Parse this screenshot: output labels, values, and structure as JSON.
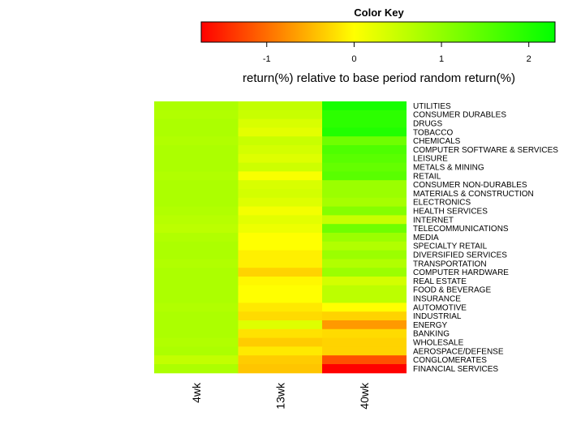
{
  "chart_data": {
    "type": "heatmap",
    "color_key": {
      "title": "Color Key",
      "xlabel": "return(%) relative to base period random return(%)",
      "range": [
        -1.75,
        2.3
      ],
      "ticks": [
        -1,
        0,
        1,
        2
      ],
      "tick_labels": [
        "-1",
        "0",
        "1",
        "2"
      ],
      "colors": [
        "#ff0000",
        "#ffff00",
        "#00ff00"
      ]
    },
    "columns": [
      "4wk",
      "13wk",
      "40wk"
    ],
    "rows": [
      "UTILITIES",
      "CONSUMER DURABLES",
      "DRUGS",
      "TOBACCO",
      "CHEMICALS",
      "COMPUTER SOFTWARE & SERVICES",
      "LEISURE",
      "METALS & MINING",
      "RETAIL",
      "CONSUMER NON-DURABLES",
      "MATERIALS & CONSTRUCTION",
      "ELECTRONICS",
      "HEALTH SERVICES",
      "INTERNET",
      "TELECOMMUNICATIONS",
      "MEDIA",
      "SPECIALTY RETAIL",
      "DIVERSIFIED SERVICES",
      "TRANSPORTATION",
      "COMPUTER HARDWARE",
      "REAL ESTATE",
      "FOOD & BEVERAGE",
      "INSURANCE",
      "AUTOMOTIVE",
      "INDUSTRIAL",
      "ENERGY",
      "BANKING",
      "WHOLESALE",
      "AEROSPACE/DEFENSE",
      "CONGLOMERATES",
      "FINANCIAL SERVICES"
    ],
    "values": [
      [
        0.75,
        0.55,
        2.1
      ],
      [
        0.7,
        0.5,
        1.9
      ],
      [
        0.75,
        0.35,
        1.9
      ],
      [
        0.75,
        0.25,
        2.0
      ],
      [
        0.7,
        0.5,
        1.3
      ],
      [
        0.75,
        0.4,
        1.6
      ],
      [
        0.75,
        0.3,
        1.5
      ],
      [
        0.75,
        0.45,
        1.4
      ],
      [
        0.7,
        0.05,
        1.5
      ],
      [
        0.75,
        0.35,
        0.9
      ],
      [
        0.75,
        0.4,
        0.9
      ],
      [
        0.75,
        0.3,
        0.8
      ],
      [
        0.7,
        0.1,
        1.1
      ],
      [
        0.65,
        0.25,
        0.5
      ],
      [
        0.6,
        0.15,
        1.3
      ],
      [
        0.7,
        0.0,
        0.9
      ],
      [
        0.75,
        0.0,
        0.7
      ],
      [
        0.75,
        -0.1,
        0.9
      ],
      [
        0.7,
        -0.1,
        0.7
      ],
      [
        0.75,
        -0.3,
        0.9
      ],
      [
        0.75,
        -0.05,
        0.4
      ],
      [
        0.75,
        0.0,
        0.6
      ],
      [
        0.75,
        0.0,
        0.6
      ],
      [
        0.7,
        -0.15,
        0.0
      ],
      [
        0.75,
        -0.25,
        -0.3
      ],
      [
        0.75,
        0.3,
        -0.7
      ],
      [
        0.75,
        -0.2,
        -0.25
      ],
      [
        0.7,
        -0.35,
        -0.3
      ],
      [
        0.75,
        -0.15,
        -0.3
      ],
      [
        0.55,
        -0.35,
        -1.2
      ],
      [
        0.75,
        -0.4,
        -1.75
      ]
    ]
  }
}
